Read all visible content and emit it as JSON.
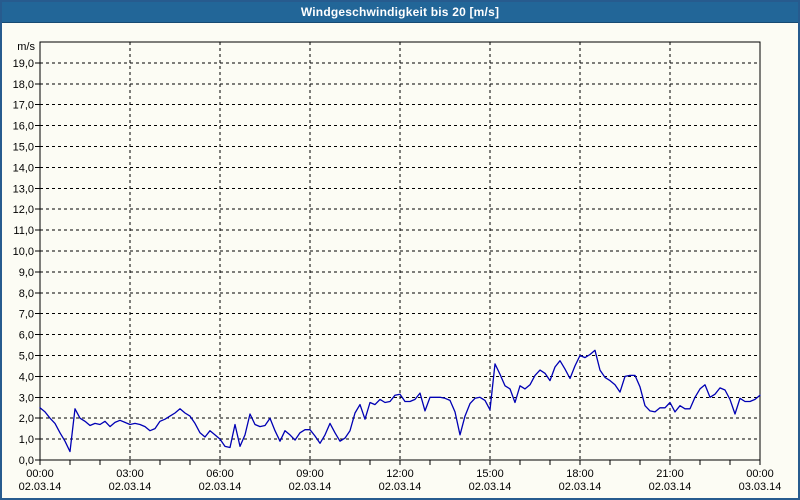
{
  "window": {
    "title": "Windgeschwindigkeit bis 20 [m/s]"
  },
  "colors": {
    "title_bar": "#226698",
    "title_text": "#ffffff",
    "frame_border": "#275b8e",
    "background": "#fcfcf4",
    "plot_border": "#000000",
    "grid": "#000000",
    "line": "#0000b4"
  },
  "chart_data": {
    "type": "line",
    "title": "Windgeschwindigkeit bis 20 [m/s]",
    "unit_label": "m/s",
    "legend": "none",
    "grid": "dashed",
    "ylim": [
      0,
      20
    ],
    "y_tick_step": 1,
    "y_tick_labels": [
      "0,0",
      "1,0",
      "2,0",
      "3,0",
      "4,0",
      "5,0",
      "6,0",
      "7,0",
      "8,0",
      "9,0",
      "10,0",
      "11,0",
      "12,0",
      "13,0",
      "14,0",
      "15,0",
      "16,0",
      "17,0",
      "18,0",
      "19,0"
    ],
    "xlim_hours": [
      0,
      24
    ],
    "minor_tick_hours": 1,
    "x_major_ticks": [
      {
        "hour": 0,
        "time": "00:00",
        "date": "02.03.14"
      },
      {
        "hour": 3,
        "time": "03:00",
        "date": "02.03.14"
      },
      {
        "hour": 6,
        "time": "06:00",
        "date": "02.03.14"
      },
      {
        "hour": 9,
        "time": "09:00",
        "date": "02.03.14"
      },
      {
        "hour": 12,
        "time": "12:00",
        "date": "02.03.14"
      },
      {
        "hour": 15,
        "time": "15:00",
        "date": "02.03.14"
      },
      {
        "hour": 18,
        "time": "18:00",
        "date": "02.03.14"
      },
      {
        "hour": 21,
        "time": "21:00",
        "date": "02.03.14"
      },
      {
        "hour": 24,
        "time": "00:00",
        "date": "03.03.14"
      }
    ],
    "sample_interval_minutes": 10,
    "series": [
      {
        "name": "Windgeschwindigkeit",
        "color": "#0000b4",
        "values": [
          2.5,
          2.3,
          2.0,
          1.75,
          1.3,
          0.9,
          0.4,
          2.45,
          2.0,
          1.85,
          1.65,
          1.75,
          1.7,
          1.85,
          1.6,
          1.8,
          1.9,
          1.8,
          1.7,
          1.75,
          1.7,
          1.6,
          1.4,
          1.5,
          1.85,
          1.95,
          2.1,
          2.25,
          2.45,
          2.25,
          2.1,
          1.75,
          1.3,
          1.1,
          1.4,
          1.2,
          1.0,
          0.65,
          0.6,
          1.7,
          0.65,
          1.2,
          2.2,
          1.7,
          1.6,
          1.65,
          2.0,
          1.4,
          0.9,
          1.4,
          1.2,
          0.95,
          1.3,
          1.45,
          1.45,
          1.15,
          0.8,
          1.2,
          1.75,
          1.3,
          0.9,
          1.05,
          1.4,
          2.25,
          2.65,
          1.95,
          2.75,
          2.65,
          2.9,
          2.75,
          2.8,
          3.1,
          3.15,
          2.8,
          2.8,
          2.9,
          3.2,
          2.35,
          3.0,
          3.0,
          3.0,
          2.95,
          2.85,
          2.3,
          1.2,
          2.1,
          2.7,
          2.95,
          3.0,
          2.85,
          2.4,
          4.6,
          4.1,
          3.55,
          3.4,
          2.75,
          3.55,
          3.4,
          3.6,
          4.05,
          4.3,
          4.15,
          3.8,
          4.45,
          4.75,
          4.35,
          3.9,
          4.5,
          5.0,
          4.9,
          5.05,
          5.25,
          4.3,
          3.95,
          3.8,
          3.6,
          3.25,
          4.0,
          4.05,
          4.05,
          3.5,
          2.6,
          2.35,
          2.3,
          2.5,
          2.5,
          2.75,
          2.3,
          2.6,
          2.45,
          2.45,
          3.0,
          3.4,
          3.6,
          3.0,
          3.15,
          3.45,
          3.35,
          2.9,
          2.2,
          2.95,
          2.8,
          2.8,
          2.9,
          3.1
        ]
      }
    ]
  }
}
